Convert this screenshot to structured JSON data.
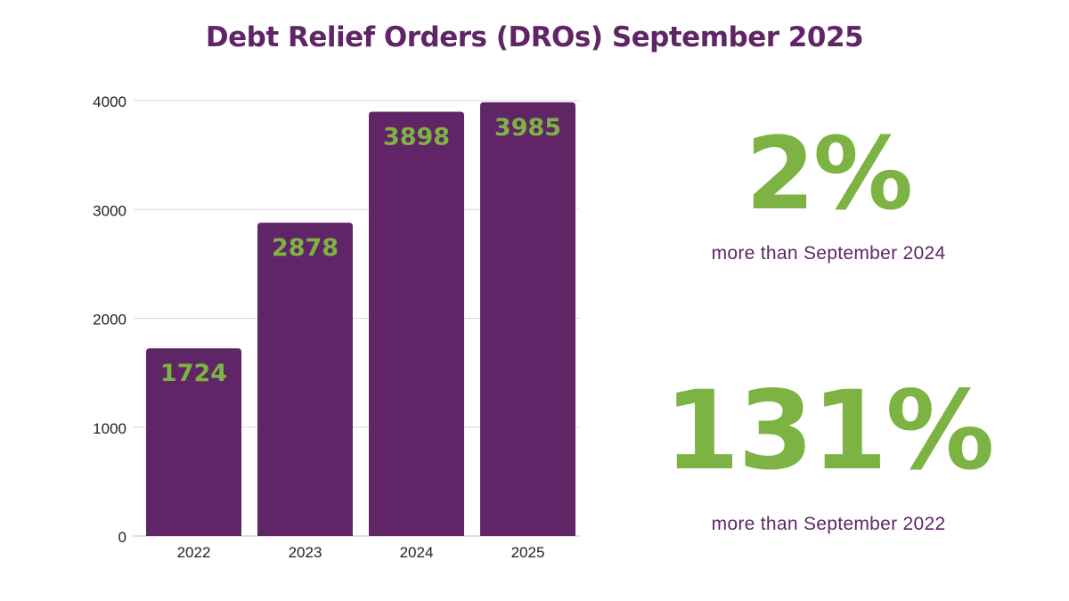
{
  "title": "Debt Relief Orders (DROs) September  2025",
  "colors": {
    "bar": "#5f2566",
    "data_label": "#7cb342",
    "title": "#5f2566",
    "gridline": "#d9d9d9",
    "axis_text": "#222222"
  },
  "chart_data": {
    "type": "bar",
    "title": "Debt Relief Orders (DROs) September  2025",
    "xlabel": "",
    "ylabel": "",
    "categories": [
      "2022",
      "2023",
      "2024",
      "2025"
    ],
    "values": [
      1724,
      2878,
      3898,
      3985
    ],
    "data_labels": [
      "1724",
      "2878",
      "3898",
      "3985"
    ],
    "ylim": [
      0,
      4000
    ],
    "yticks": [
      0,
      1000,
      2000,
      3000,
      4000
    ],
    "ytick_labels": [
      "0",
      "1000",
      "2000",
      "3000",
      "4000"
    ],
    "grid": true,
    "legend": "none"
  },
  "stats": [
    {
      "value": "2%",
      "caption": "more than September 2024"
    },
    {
      "value": "131%",
      "caption": "more than September 2022"
    }
  ]
}
